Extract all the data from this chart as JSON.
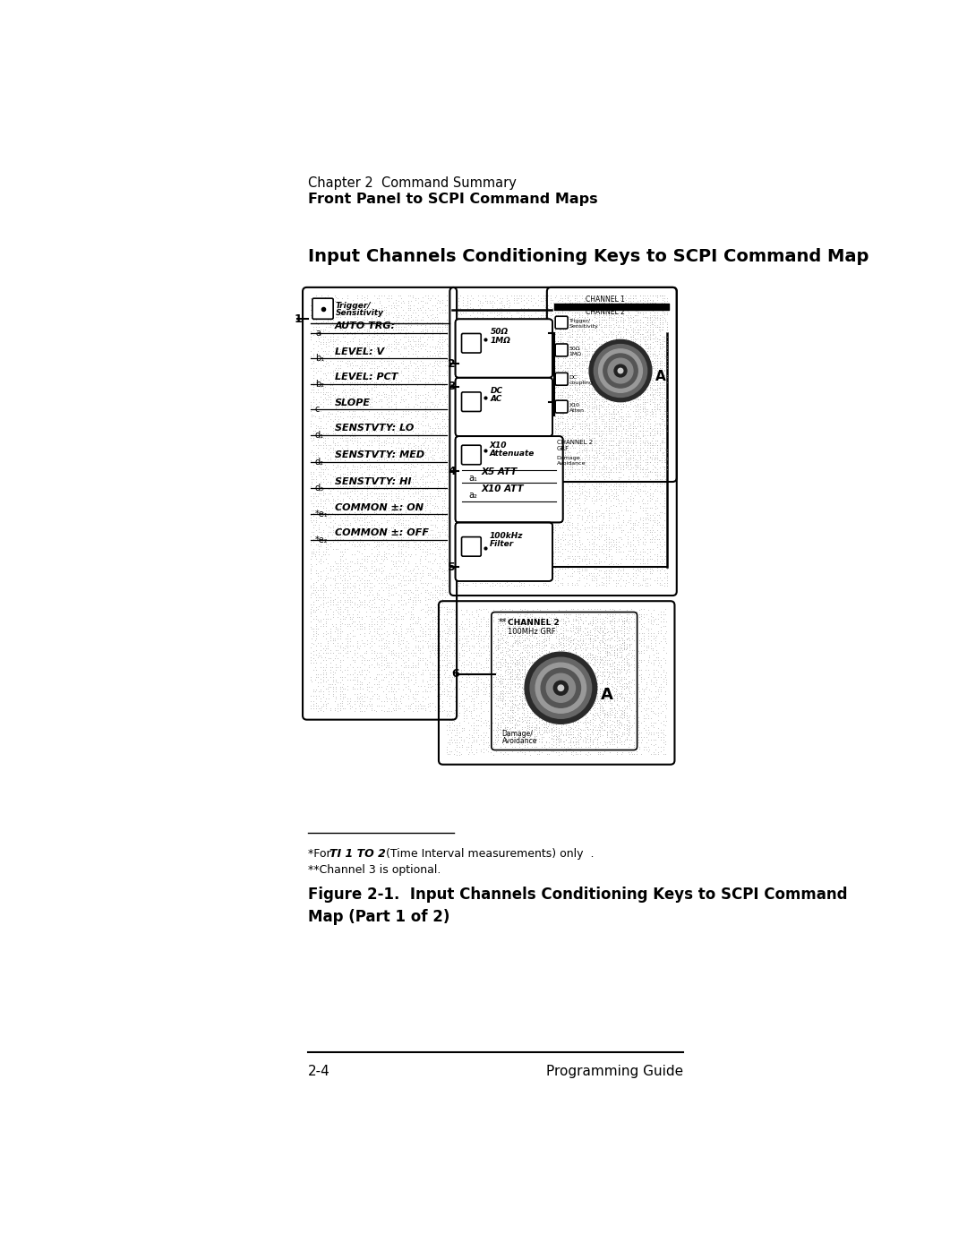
{
  "page_width": 10.8,
  "page_height": 13.97,
  "bg_color": "#ffffff",
  "header_line1": "Chapter 2  Command Summary",
  "header_line2": "Front Panel to SCPI Command Maps",
  "section_title": "Input Channels Conditioning Keys to SCPI Command Map",
  "footer_line": "2-4",
  "footer_right": "Programming Guide",
  "footnote1_pre": "*For  ",
  "footnote1_italic": "TI 1 TO 2",
  "footnote1_post": "  (Time Interval measurements) only  .",
  "footnote2": "**Channel 3 is optional.",
  "figure_caption": "Figure 2-1.  Input Channels Conditioning Keys to SCPI Command\nMap (Part 1 of 2)",
  "stipple_color": "#bbbbbb",
  "stipple_density": 0.55
}
